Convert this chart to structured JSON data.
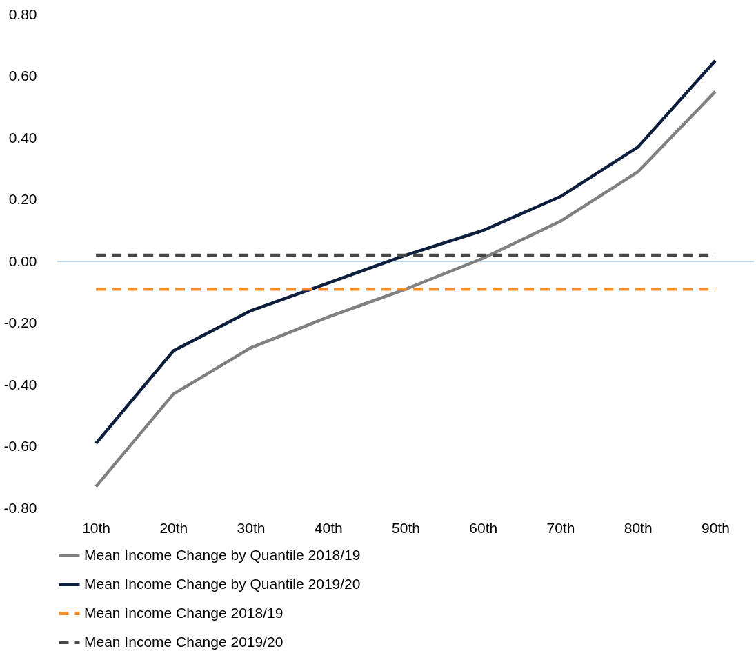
{
  "chart_data": {
    "type": "line",
    "categories": [
      "10th",
      "20th",
      "30th",
      "40th",
      "50th",
      "60th",
      "70th",
      "80th",
      "90th"
    ],
    "series": [
      {
        "name": "Mean Income Change by Quantile 2018/19",
        "color": "#808080",
        "line_style": "solid",
        "values": [
          -0.73,
          -0.43,
          -0.28,
          -0.18,
          -0.09,
          0.01,
          0.13,
          0.29,
          0.55
        ]
      },
      {
        "name": "Mean Income Change by Quantile 2019/20",
        "color": "#0d1f3c",
        "line_style": "solid",
        "values": [
          -0.59,
          -0.29,
          -0.16,
          -0.07,
          0.02,
          0.1,
          0.21,
          0.37,
          0.65
        ]
      },
      {
        "name": "Mean Income Change 2018/19",
        "color": "#f28e2b",
        "line_style": "dashed",
        "values": [
          -0.09,
          -0.09,
          -0.09,
          -0.09,
          -0.09,
          -0.09,
          -0.09,
          -0.09,
          -0.09
        ]
      },
      {
        "name": "Mean Income Change 2019/20",
        "color": "#474747",
        "line_style": "dashed",
        "values": [
          0.02,
          0.02,
          0.02,
          0.02,
          0.02,
          0.02,
          0.02,
          0.02,
          0.02
        ]
      }
    ],
    "ylim": [
      -0.8,
      0.8
    ],
    "yticks": [
      {
        "value": -0.8,
        "label": "-0.80"
      },
      {
        "value": -0.6,
        "label": "-0.60"
      },
      {
        "value": -0.4,
        "label": "-0.40"
      },
      {
        "value": -0.2,
        "label": "-0.20"
      },
      {
        "value": 0,
        "label": "0.00"
      },
      {
        "value": 0.2,
        "label": "0.20"
      },
      {
        "value": 0.4,
        "label": "0.40"
      },
      {
        "value": 0.6,
        "label": "0.60"
      },
      {
        "value": 0.8,
        "label": "0.80"
      }
    ],
    "ref_lines": [
      {
        "axis": "y",
        "value": 0,
        "color": "#9dc3e6"
      }
    ],
    "grid": false,
    "legend": "bottom"
  }
}
